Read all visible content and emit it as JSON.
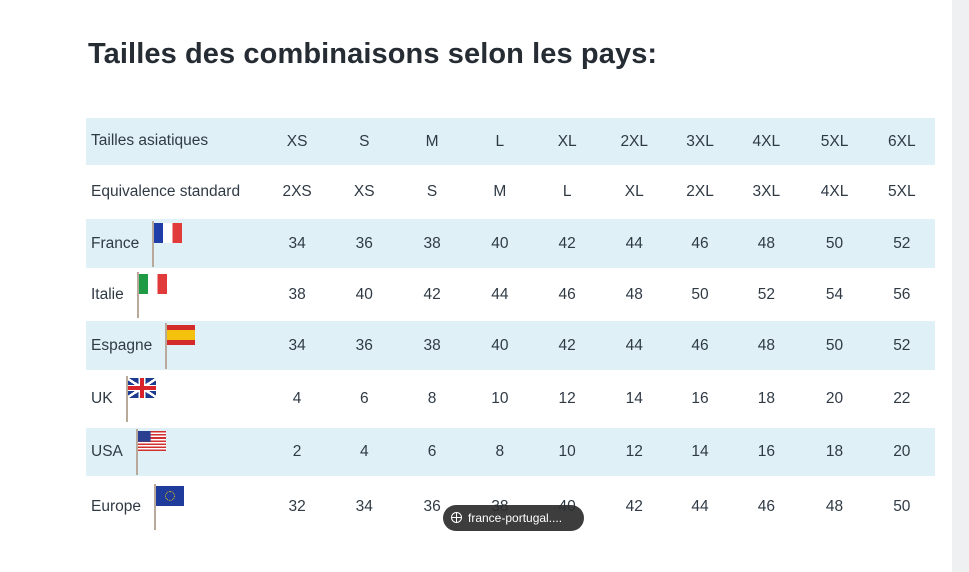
{
  "title": "Tailles des combinaisons selon les pays:",
  "table": {
    "rows": [
      {
        "label": "Tailles asiatiques",
        "flag": "",
        "shaded": true,
        "cells": [
          "XS",
          "S",
          "M",
          "L",
          "XL",
          "2XL",
          "3XL",
          "4XL",
          "5XL",
          "6XL"
        ]
      },
      {
        "label": "Equivalence standard",
        "flag": "",
        "shaded": false,
        "cells": [
          "2XS",
          "XS",
          "S",
          "M",
          "L",
          "XL",
          "2XL",
          "3XL",
          "4XL",
          "5XL"
        ]
      },
      {
        "label": "France",
        "flag": "france-flag-icon",
        "shaded": true,
        "cells": [
          "34",
          "36",
          "38",
          "40",
          "42",
          "44",
          "46",
          "48",
          "50",
          "52"
        ]
      },
      {
        "label": "Italie",
        "flag": "italy-flag-icon",
        "shaded": false,
        "cells": [
          "38",
          "40",
          "42",
          "44",
          "46",
          "48",
          "50",
          "52",
          "54",
          "56"
        ]
      },
      {
        "label": "Espagne",
        "flag": "spain-flag-icon",
        "shaded": true,
        "cells": [
          "34",
          "36",
          "38",
          "40",
          "42",
          "44",
          "46",
          "48",
          "50",
          "52"
        ]
      },
      {
        "label": "UK",
        "flag": "uk-flag-icon",
        "shaded": false,
        "cells": [
          "4",
          "6",
          "8",
          "10",
          "12",
          "14",
          "16",
          "18",
          "20",
          "22"
        ]
      },
      {
        "label": "USA",
        "flag": "usa-flag-icon",
        "shaded": true,
        "cells": [
          "2",
          "4",
          "6",
          "8",
          "10",
          "12",
          "14",
          "16",
          "18",
          "20"
        ]
      },
      {
        "label": "Europe",
        "flag": "eu-flag-icon",
        "shaded": false,
        "cells": [
          "32",
          "34",
          "36",
          "38",
          "40",
          "42",
          "44",
          "46",
          "48",
          "50"
        ]
      }
    ]
  },
  "tooltip": {
    "icon": "globe-icon",
    "text": "france-portugal...."
  },
  "colors": {
    "row_shade": "#dff0f7",
    "text": "#2f3a45",
    "title": "#262c33",
    "tooltip_bg": "#2d2d2d"
  }
}
